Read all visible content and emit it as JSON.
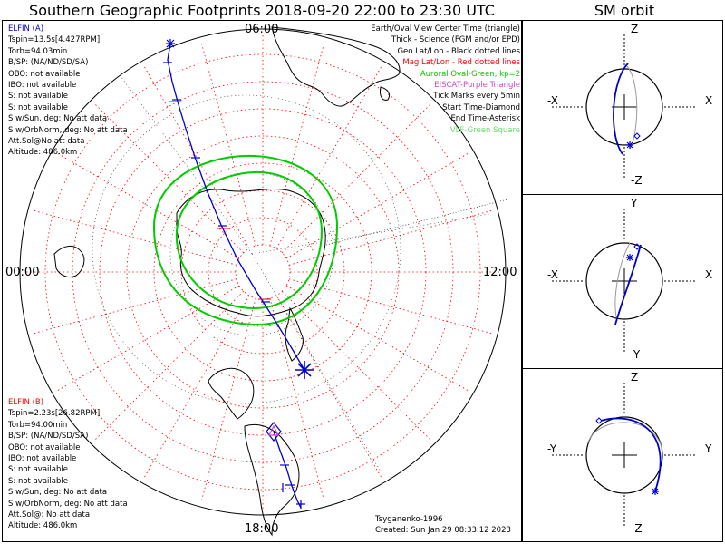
{
  "title": "Southern Geographic Footprints 2018-09-20 22:00 to 23:30 UTC",
  "sm_title": "SM orbit",
  "mlt_labels": {
    "top": "06:00",
    "bottom": "18:00",
    "left": "00:00",
    "right": "12:00"
  },
  "elfin_a": {
    "header": "ELFIN (A)",
    "lines": [
      "Tspin=13.5s[4.427RPM]",
      "Torb=94.03min",
      "B/SP: (NA/ND/SD/SA)",
      "OBO: not available",
      "IBO: not available",
      "S: not available",
      "S: not available",
      "S w/Sun, deg: No att data",
      "S w/OrbNorm, deg: No att data",
      "Att.Sol@No att data",
      "Altitude: 486.0km"
    ]
  },
  "elfin_b": {
    "header": "ELFIN (B)",
    "lines": [
      "Tspin=2.23s[26.82RPM]",
      "Torb=94.00min",
      "B/SP: (NA/ND/SD/SA)",
      "OBO: not available",
      "IBO: not available",
      "S: not available",
      "S: not available",
      "S w/Sun, deg: No att data",
      "S w/OrbNorm, deg: No att data",
      "Att.Sol@: No att data",
      "Altitude: 486.0km"
    ]
  },
  "legend": [
    {
      "text": "Earth/Oval View Center Time (triangle)",
      "color": "#000000"
    },
    {
      "text": "Thick - Science (FGM and/or EPD)",
      "color": "#000000"
    },
    {
      "text": "Geo Lat/Lon - Black dotted lines",
      "color": "#000000"
    },
    {
      "text": "Mag Lat/Lon - Red dotted lines",
      "color": "#ff0000"
    },
    {
      "text": "Auroral Oval-Green, kp=2",
      "color": "#00cc00"
    },
    {
      "text": "EISCAT-Purple Triangle",
      "color": "#cc44cc"
    },
    {
      "text": "Tick Marks every 5min",
      "color": "#000000"
    },
    {
      "text": "Start Time-Diamond",
      "color": "#000000"
    },
    {
      "text": "End Time-Asterisk",
      "color": "#000000"
    },
    {
      "text": "VLF-Green Square",
      "color": "#66dd66"
    }
  ],
  "credits": {
    "model": "Tsyganenko-1996",
    "created": "Created: Sun Jan 29 08:33:12 2023"
  },
  "sm_panels": [
    {
      "top": "Z",
      "bottom": "-Z",
      "left": "-X",
      "right": "X"
    },
    {
      "top": "Y",
      "bottom": "-Y",
      "left": "-X",
      "right": "X"
    },
    {
      "top": "Z",
      "bottom": "-Z",
      "left": "-Y",
      "right": "Y"
    }
  ],
  "colors": {
    "orbit_a": "#0000cc",
    "orbit_b_label": "#ff0000",
    "mag_grid": "#ff0000",
    "auroral_oval": "#00cc00",
    "geo_grid": "#000000",
    "start_diamond": "#0000cc",
    "end_asterisk": "#0000cc"
  },
  "icons": [
    "start-diamond-icon",
    "end-asterisk-icon",
    "tick-mark-icon"
  ]
}
